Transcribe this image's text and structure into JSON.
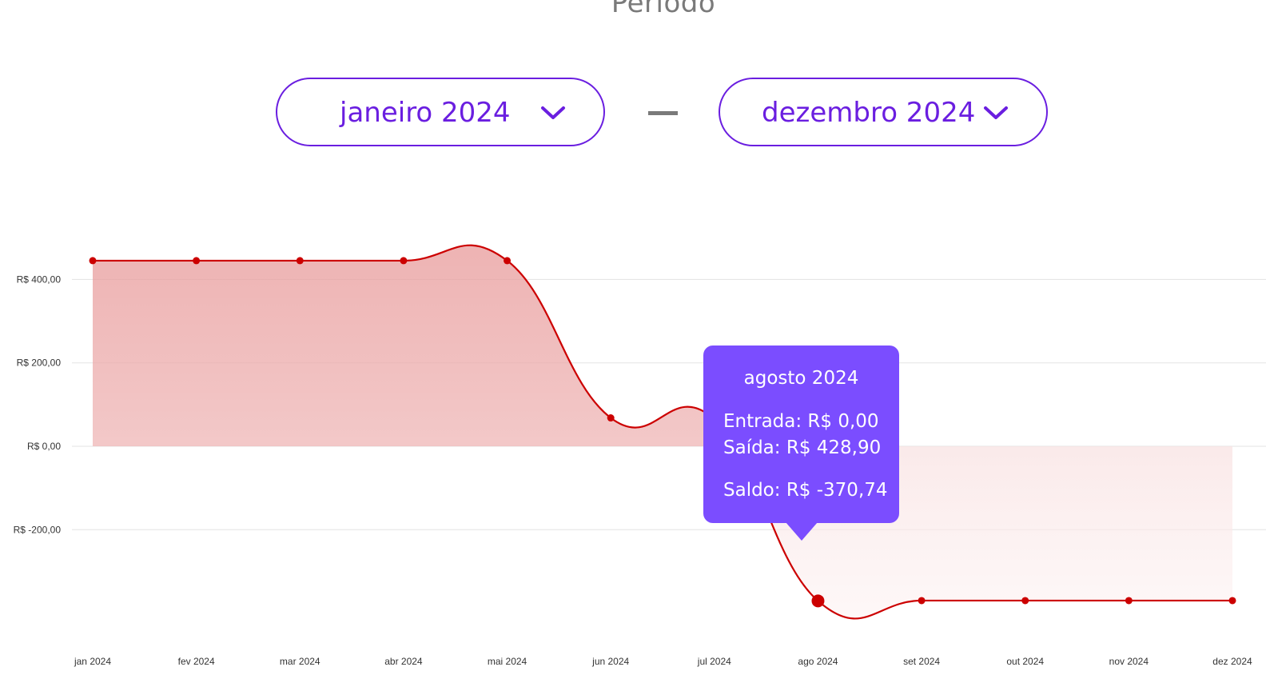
{
  "header": {
    "title": "Período"
  },
  "period": {
    "from": "janeiro 2024",
    "to": "dezembro 2024",
    "separator": "—"
  },
  "tooltip": {
    "title": "agosto 2024",
    "entrada": "Entrada: R$ 0,00",
    "saida": "Saída: R$ 428,90",
    "saldo": "Saldo: R$ -370,74"
  },
  "colors": {
    "accent": "#6a1ee0",
    "tooltip": "#7b4dff",
    "line": "#cc0000"
  },
  "chart_data": {
    "type": "area",
    "title": "",
    "xlabel": "",
    "ylabel": "",
    "categories": [
      "jan 2024",
      "fev 2024",
      "mar 2024",
      "abr 2024",
      "mai 2024",
      "jun 2024",
      "jul 2024",
      "ago 2024",
      "set 2024",
      "out 2024",
      "nov 2024",
      "dez 2024"
    ],
    "series": [
      {
        "values": [
          445,
          445,
          445,
          445,
          445,
          68,
          65,
          -370.74,
          -370,
          -370,
          -370,
          -370
        ]
      }
    ],
    "yticks": [
      400,
      200,
      0,
      -200
    ],
    "ytick_labels": [
      "R$ 400,00",
      "R$ 200,00",
      "R$ 0,00",
      "R$ -200,00"
    ],
    "ylim": [
      -420,
      500
    ],
    "grid": true,
    "highlighted_index": 7
  }
}
